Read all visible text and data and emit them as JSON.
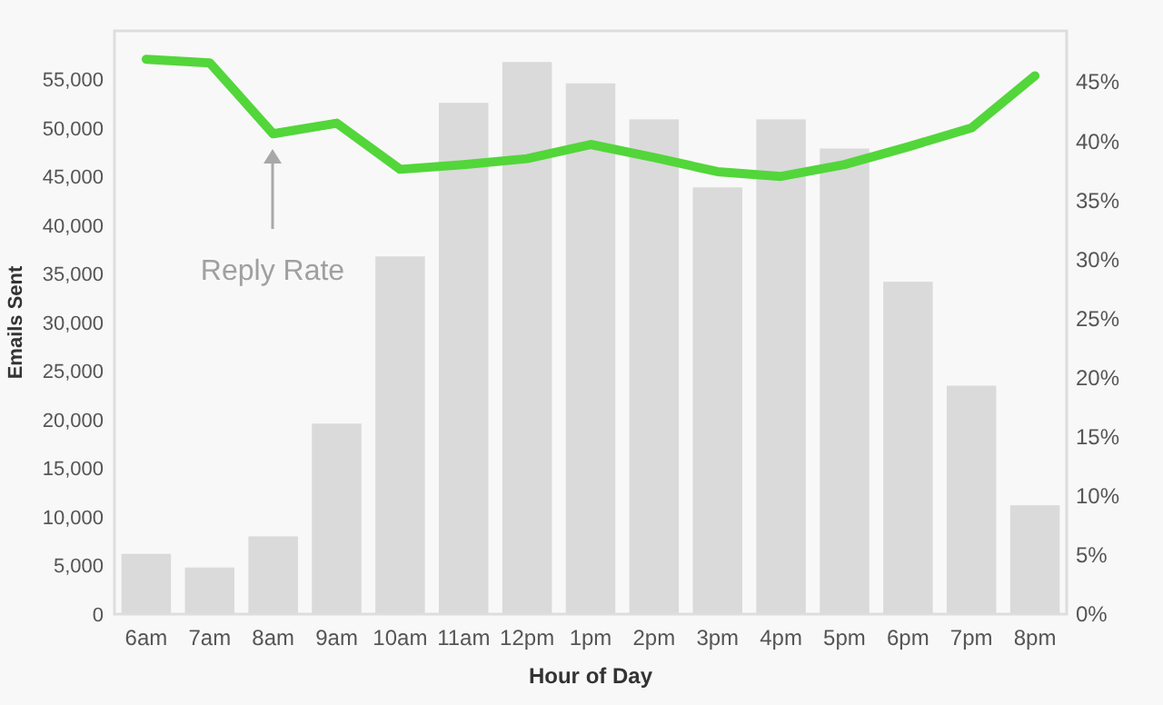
{
  "chart_data": {
    "type": "bar",
    "xlabel": "Hour of Day",
    "ylabel": "Emails Sent",
    "categories": [
      "6am",
      "7am",
      "8am",
      "9am",
      "10am",
      "11am",
      "12pm",
      "1pm",
      "2pm",
      "3pm",
      "4pm",
      "5pm",
      "6pm",
      "7pm",
      "8pm"
    ],
    "series": [
      {
        "color": "#dadada",
        "values": [
          6200,
          4800,
          8000,
          19600,
          36800,
          52600,
          56800,
          54600,
          50900,
          43900,
          50900,
          47900,
          34200,
          23500,
          11200
        ]
      },
      {
        "type": "line",
        "axis": "y2",
        "color": "#52d63a",
        "values": [
          46.9,
          46.6,
          40.6,
          41.5,
          37.6,
          38.0,
          38.5,
          39.7,
          38.6,
          37.4,
          37.0,
          38.0,
          39.5,
          41.1,
          45.5
        ]
      }
    ],
    "ylim": [
      0,
      60000
    ],
    "yticks": [
      {
        "value": 0,
        "label": "0"
      },
      {
        "value": 5000,
        "label": "5,000"
      },
      {
        "value": 10000,
        "label": "10,000"
      },
      {
        "value": 15000,
        "label": "15,000"
      },
      {
        "value": 20000,
        "label": "20,000"
      },
      {
        "value": 25000,
        "label": "25,000"
      },
      {
        "value": 30000,
        "label": "30,000"
      },
      {
        "value": 35000,
        "label": "35,000"
      },
      {
        "value": 40000,
        "label": "40,000"
      },
      {
        "value": 45000,
        "label": "45,000"
      },
      {
        "value": 50000,
        "label": "50,000"
      },
      {
        "value": 55000,
        "label": "55,000"
      }
    ],
    "y2lim": [
      0,
      49.3
    ],
    "y2ticks": [
      {
        "value": 0,
        "label": "0%"
      },
      {
        "value": 5,
        "label": "5%"
      },
      {
        "value": 10,
        "label": "10%"
      },
      {
        "value": 15,
        "label": "15%"
      },
      {
        "value": 20,
        "label": "20%"
      },
      {
        "value": 25,
        "label": "25%"
      },
      {
        "value": 30,
        "label": "30%"
      },
      {
        "value": 35,
        "label": "35%"
      },
      {
        "value": 40,
        "label": "40%"
      },
      {
        "value": 45,
        "label": "45%"
      }
    ],
    "annotations": [
      "Reply Rate"
    ],
    "grid": false,
    "marker": "none",
    "line_style": "solid"
  }
}
